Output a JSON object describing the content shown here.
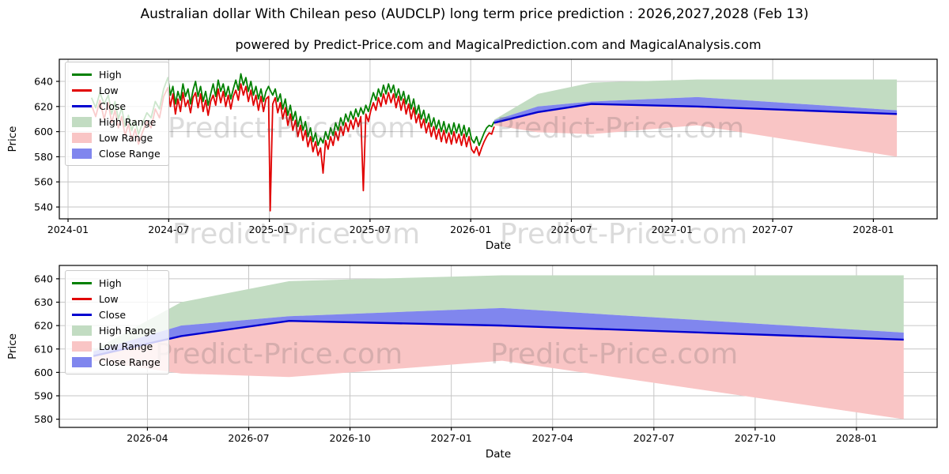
{
  "page": {
    "title": "Australian dollar With Chilean peso (AUDCLP) long term price prediction : 2026,2027,2028 (Feb 13)",
    "subtitle": "powered by Predict-Price.com and MagicalPrediction.com and MagicalAnalysis.com",
    "watermark": "Predict-Price.com"
  },
  "colors": {
    "high": "#008000",
    "low": "#e10000",
    "close": "#0000d0",
    "high_range": "#c2dcc2",
    "low_range": "#f9c5c5",
    "close_range": "#8086ee",
    "grid": "#c6c6c6",
    "axis": "#000000"
  },
  "legend": {
    "items": [
      {
        "label": "High",
        "swatch": "line",
        "color": "#008000"
      },
      {
        "label": "Low",
        "swatch": "line",
        "color": "#e10000"
      },
      {
        "label": "Close",
        "swatch": "line",
        "color": "#0000d0"
      },
      {
        "label": "High Range",
        "swatch": "patch",
        "color": "#c2dcc2"
      },
      {
        "label": "Low Range",
        "swatch": "patch",
        "color": "#f9c5c5"
      },
      {
        "label": "Close Range",
        "swatch": "patch",
        "color": "#8086ee"
      }
    ]
  },
  "chart_data": [
    {
      "type": "line",
      "name": "history-and-prediction",
      "xlabel": "Date",
      "ylabel": "Price",
      "t_unit": "months since 2024-01-01",
      "xlim": [
        -0.52,
        51.8
      ],
      "ylim": [
        530.6,
        657.6
      ],
      "x_ticks": {
        "t": [
          0,
          6,
          12,
          18,
          24,
          30,
          36,
          42,
          48
        ],
        "labels": [
          "2024-01",
          "2024-07",
          "2025-01",
          "2025-07",
          "2026-01",
          "2026-07",
          "2027-01",
          "2027-07",
          "2028-01"
        ]
      },
      "y_ticks": [
        540,
        560,
        580,
        600,
        620,
        640
      ],
      "history": {
        "t": [
          1.4,
          1.65,
          1.9,
          2.15,
          2.4,
          2.6,
          2.8,
          3.0,
          3.2,
          3.4,
          3.6,
          3.8,
          4.0,
          4.2,
          4.45,
          4.7,
          4.95,
          5.2,
          5.45,
          5.7,
          5.95,
          6.1,
          6.25,
          6.4,
          6.55,
          6.7,
          6.85,
          7.0,
          7.15,
          7.3,
          7.45,
          7.6,
          7.75,
          7.9,
          8.05,
          8.2,
          8.35,
          8.5,
          8.65,
          8.8,
          8.95,
          9.1,
          9.25,
          9.4,
          9.55,
          9.7,
          9.85,
          10.0,
          10.15,
          10.3,
          10.45,
          10.6,
          10.75,
          10.9,
          11.05,
          11.2,
          11.35,
          11.5,
          11.65,
          11.8,
          11.95,
          12.05,
          12.2,
          12.35,
          12.5,
          12.65,
          12.8,
          12.95,
          13.1,
          13.25,
          13.4,
          13.55,
          13.7,
          13.85,
          14.0,
          14.15,
          14.3,
          14.45,
          14.6,
          14.75,
          14.9,
          15.05,
          15.2,
          15.35,
          15.5,
          15.65,
          15.8,
          15.95,
          16.1,
          16.25,
          16.4,
          16.55,
          16.7,
          16.85,
          17.0,
          17.15,
          17.3,
          17.45,
          17.6,
          17.75,
          17.9,
          18.05,
          18.2,
          18.35,
          18.5,
          18.65,
          18.8,
          18.95,
          19.1,
          19.25,
          19.4,
          19.55,
          19.7,
          19.85,
          20.0,
          20.15,
          20.3,
          20.45,
          20.6,
          20.75,
          20.9,
          21.05,
          21.2,
          21.35,
          21.5,
          21.65,
          21.8,
          21.95,
          22.1,
          22.25,
          22.4,
          22.55,
          22.7,
          22.85,
          23.0,
          23.15,
          23.3,
          23.45,
          23.6,
          23.75,
          23.9,
          24.05,
          24.2,
          24.35,
          24.5,
          24.65,
          24.8,
          24.95,
          25.1,
          25.25,
          25.4
        ],
        "high": [
          627,
          619,
          631,
          622,
          629,
          614,
          624,
          610,
          619,
          604,
          613,
          601,
          609,
          598,
          607,
          615,
          611,
          624,
          618,
          634,
          643,
          629,
          636,
          622,
          632,
          625,
          638,
          628,
          634,
          622,
          633,
          640,
          628,
          636,
          624,
          632,
          621,
          630,
          638,
          628,
          641,
          632,
          638,
          628,
          636,
          626,
          634,
          641,
          633,
          646,
          637,
          643,
          632,
          640,
          629,
          636,
          626,
          634,
          624,
          632,
          636,
          633,
          629,
          634,
          624,
          630,
          618,
          626,
          613,
          621,
          609,
          616,
          604,
          612,
          601,
          608,
          596,
          603,
          592,
          599,
          589,
          595,
          591,
          600,
          594,
          603,
          597,
          607,
          601,
          611,
          605,
          614,
          608,
          616,
          610,
          618,
          612,
          619,
          614,
          621,
          616,
          624,
          631,
          625,
          634,
          628,
          637,
          630,
          638,
          631,
          637,
          627,
          634,
          625,
          632,
          622,
          629,
          618,
          626,
          614,
          621,
          610,
          617,
          607,
          614,
          604,
          611,
          602,
          609,
          600,
          608,
          599,
          606,
          598,
          607,
          599,
          606,
          597,
          605,
          596,
          603,
          594,
          591,
          596,
          589,
          594,
          599,
          603,
          605,
          604,
          608
        ],
        "low": [
          621,
          612,
          625,
          610,
          623,
          607,
          617,
          603,
          612,
          597,
          606,
          593,
          602,
          590,
          600,
          608,
          603,
          618,
          611,
          628,
          635,
          620,
          630,
          614,
          626,
          616,
          631,
          620,
          625,
          615,
          627,
          631,
          619,
          630,
          616,
          625,
          613,
          624,
          629,
          621,
          634,
          623,
          632,
          620,
          629,
          618,
          628,
          633,
          625,
          638,
          629,
          636,
          624,
          633,
          621,
          629,
          617,
          628,
          616,
          626,
          628,
          537,
          622,
          627,
          615,
          623,
          610,
          619,
          605,
          614,
          601,
          609,
          596,
          605,
          593,
          601,
          588,
          596,
          584,
          592,
          581,
          587,
          567,
          593,
          586,
          596,
          589,
          600,
          593,
          604,
          597,
          607,
          600,
          609,
          602,
          611,
          604,
          612,
          553,
          614,
          608,
          617,
          623,
          617,
          627,
          620,
          630,
          622,
          631,
          623,
          630,
          619,
          628,
          617,
          626,
          614,
          622,
          610,
          619,
          607,
          614,
          603,
          610,
          599,
          607,
          596,
          604,
          594,
          602,
          592,
          601,
          591,
          599,
          590,
          600,
          591,
          598,
          589,
          598,
          588,
          596,
          586,
          583,
          588,
          581,
          587,
          592,
          596,
          599,
          598,
          604
        ]
      },
      "prediction": {
        "t": [
          25.4,
          28.0,
          31.2,
          37.5,
          49.4
        ],
        "high_top": [
          609.5,
          630,
          639,
          641.5,
          641.5
        ],
        "close_top": [
          609,
          620,
          624,
          627.5,
          617
        ],
        "close": [
          607,
          615.5,
          622,
          620,
          614
        ],
        "low_bottom": [
          605,
          599.5,
          598,
          605,
          580
        ]
      }
    },
    {
      "type": "line",
      "name": "prediction-zoom",
      "xlabel": "Date",
      "ylabel": "Price",
      "t_unit": "months since 2024-01-01",
      "xlim": [
        24.39,
        50.39
      ],
      "ylim": [
        576.5,
        645.7
      ],
      "x_ticks": {
        "t": [
          27,
          30,
          33,
          36,
          39,
          42,
          45,
          48
        ],
        "labels": [
          "2026-04",
          "2026-07",
          "2026-10",
          "2027-01",
          "2027-04",
          "2027-07",
          "2027-10",
          "2028-01"
        ]
      },
      "y_ticks": [
        580,
        590,
        600,
        610,
        620,
        630,
        640
      ],
      "prediction": {
        "t": [
          25.4,
          28.0,
          31.2,
          37.5,
          49.4
        ],
        "high_top": [
          609.5,
          630,
          639,
          641.5,
          641.5
        ],
        "close_top": [
          609,
          620,
          624,
          627.5,
          617
        ],
        "close": [
          607,
          615.5,
          622,
          620,
          614
        ],
        "low_bottom": [
          605,
          599.5,
          598,
          605,
          580
        ]
      }
    }
  ]
}
